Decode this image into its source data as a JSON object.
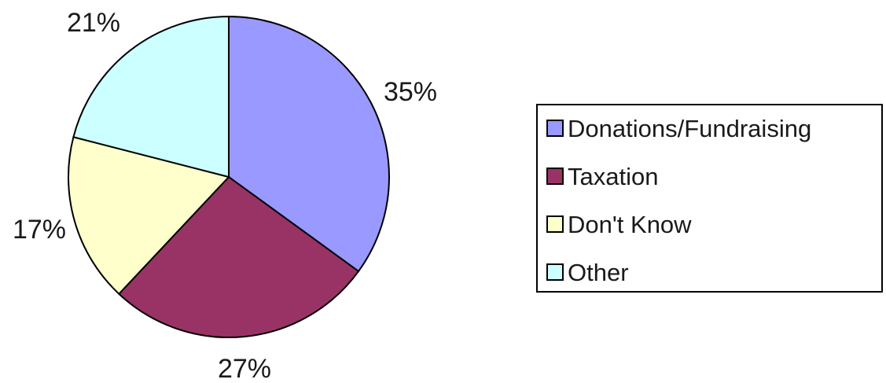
{
  "chart_data": {
    "type": "pie",
    "categories": [
      "Donations/Fundraising",
      "Taxation",
      "Don't Know",
      "Other"
    ],
    "values": [
      35,
      27,
      17,
      21
    ],
    "value_labels": [
      "35%",
      "27%",
      "17%",
      "21%"
    ],
    "colors": [
      "#9999ff",
      "#993366",
      "#ffffcc",
      "#ccffff"
    ],
    "title": "",
    "legend_position": "right",
    "start_angle_degrees": 0,
    "direction": "clockwise"
  }
}
